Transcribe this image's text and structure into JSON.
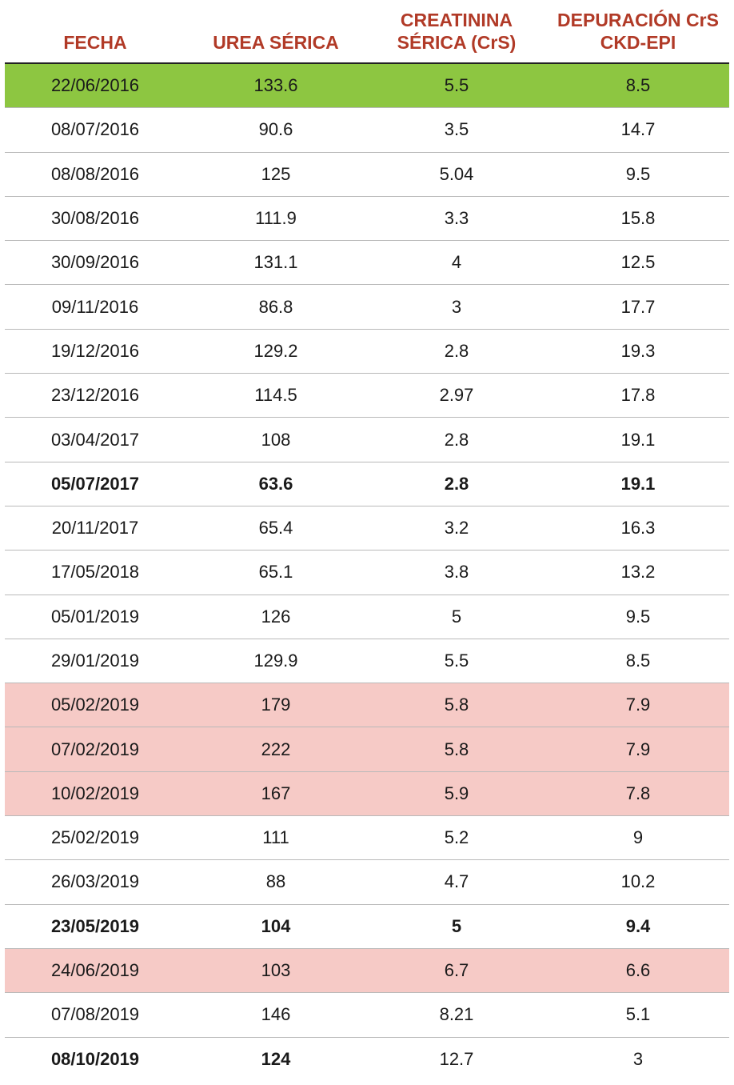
{
  "table": {
    "headers": {
      "fecha": [
        "FECHA"
      ],
      "urea": [
        "UREA SÉRICA"
      ],
      "creat": [
        "CREATININA",
        "SÉRICA (CrS)"
      ],
      "depur": [
        "DEPURACIÓN CrS",
        "CKD-EPI"
      ]
    },
    "colors": {
      "header_text": "#b13a27",
      "green_highlight": "#8dc641",
      "pink_highlight": "#f6cac6"
    },
    "rows": [
      {
        "fecha": "22/06/2016",
        "urea": "133.6",
        "creat": "5.5",
        "depur": "8.5",
        "highlight": "green",
        "bold": false
      },
      {
        "fecha": "08/07/2016",
        "urea": "90.6",
        "creat": "3.5",
        "depur": "14.7",
        "highlight": "",
        "bold": false
      },
      {
        "fecha": "08/08/2016",
        "urea": "125",
        "creat": "5.04",
        "depur": "9.5",
        "highlight": "",
        "bold": false
      },
      {
        "fecha": "30/08/2016",
        "urea": "111.9",
        "creat": "3.3",
        "depur": "15.8",
        "highlight": "",
        "bold": false
      },
      {
        "fecha": "30/09/2016",
        "urea": "131.1",
        "creat": "4",
        "depur": "12.5",
        "highlight": "",
        "bold": false
      },
      {
        "fecha": "09/11/2016",
        "urea": "86.8",
        "creat": "3",
        "depur": "17.7",
        "highlight": "",
        "bold": false
      },
      {
        "fecha": "19/12/2016",
        "urea": "129.2",
        "creat": "2.8",
        "depur": "19.3",
        "highlight": "",
        "bold": false
      },
      {
        "fecha": "23/12/2016",
        "urea": "114.5",
        "creat": "2.97",
        "depur": "17.8",
        "highlight": "",
        "bold": false
      },
      {
        "fecha": "03/04/2017",
        "urea": "108",
        "creat": "2.8",
        "depur": "19.1",
        "highlight": "",
        "bold": false
      },
      {
        "fecha": "05/07/2017",
        "urea": "63.6",
        "creat": "2.8",
        "depur": "19.1",
        "highlight": "",
        "bold": true
      },
      {
        "fecha": "20/11/2017",
        "urea": "65.4",
        "creat": "3.2",
        "depur": "16.3",
        "highlight": "",
        "bold": false
      },
      {
        "fecha": "17/05/2018",
        "urea": "65.1",
        "creat": "3.8",
        "depur": "13.2",
        "highlight": "",
        "bold": false
      },
      {
        "fecha": "05/01/2019",
        "urea": "126",
        "creat": "5",
        "depur": "9.5",
        "highlight": "",
        "bold": false
      },
      {
        "fecha": "29/01/2019",
        "urea": "129.9",
        "creat": "5.5",
        "depur": "8.5",
        "highlight": "",
        "bold": false
      },
      {
        "fecha": "05/02/2019",
        "urea": "179",
        "creat": "5.8",
        "depur": "7.9",
        "highlight": "pink",
        "bold": false
      },
      {
        "fecha": "07/02/2019",
        "urea": "222",
        "creat": "5.8",
        "depur": "7.9",
        "highlight": "pink",
        "bold": false
      },
      {
        "fecha": "10/02/2019",
        "urea": "167",
        "creat": "5.9",
        "depur": "7.8",
        "highlight": "pink",
        "bold": false
      },
      {
        "fecha": "25/02/2019",
        "urea": "111",
        "creat": "5.2",
        "depur": "9",
        "highlight": "",
        "bold": false
      },
      {
        "fecha": "26/03/2019",
        "urea": "88",
        "creat": "4.7",
        "depur": "10.2",
        "highlight": "",
        "bold": false
      },
      {
        "fecha": "23/05/2019",
        "urea": "104",
        "creat": "5",
        "depur": "9.4",
        "highlight": "",
        "bold": true
      },
      {
        "fecha": "24/06/2019",
        "urea": "103",
        "creat": "6.7",
        "depur": "6.6",
        "highlight": "pink",
        "bold": false
      },
      {
        "fecha": "07/08/2019",
        "urea": "146",
        "creat": "8.21",
        "depur": "5.1",
        "highlight": "",
        "bold": false
      },
      {
        "fecha": "08/10/2019",
        "urea": "124",
        "creat": "12.7",
        "depur": "3",
        "highlight": "",
        "bold": false,
        "bold_cols": [
          "fecha",
          "urea"
        ]
      }
    ]
  }
}
